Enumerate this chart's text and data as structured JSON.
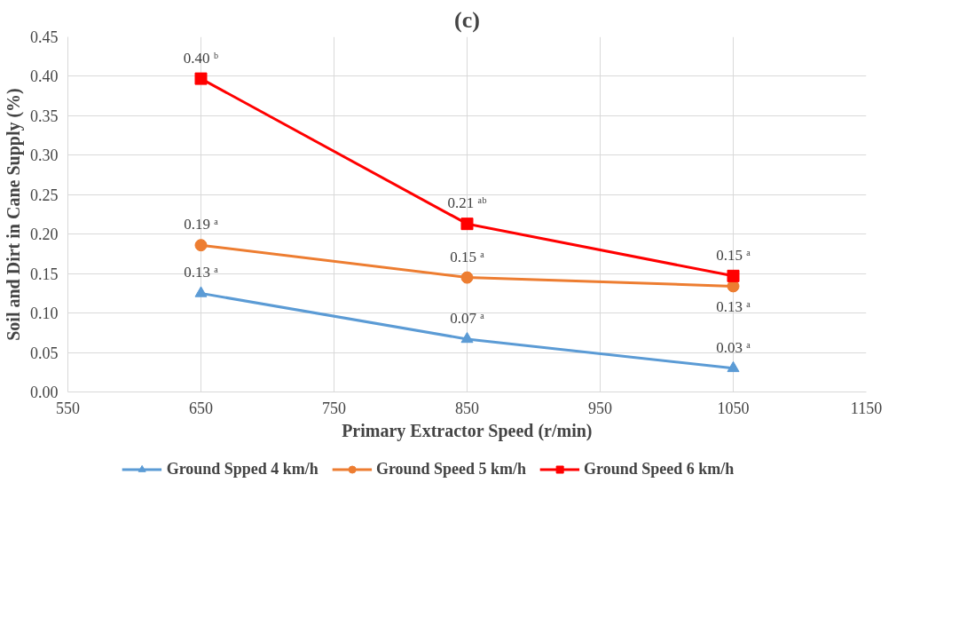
{
  "chart_data": {
    "type": "line",
    "title": "(c)",
    "xlabel": "Primary Extractor Speed (r/min)",
    "ylabel": "Soil and Dirt in Cane Supply (%)",
    "x": [
      650,
      850,
      1050
    ],
    "series": [
      {
        "name": "Ground Spped 4 km/h",
        "color": "#5b9bd5",
        "marker": "triangle",
        "values": [
          0.125,
          0.067,
          0.03
        ],
        "value_labels": [
          "0.13 ᵃ",
          "0.07 ᵃ",
          "0.03 ᵃ"
        ]
      },
      {
        "name": "Ground Speed 5 km/h",
        "color": "#ed7d31",
        "marker": "circle",
        "values": [
          0.186,
          0.145,
          0.134
        ],
        "value_labels": [
          "0.19 ᵃ",
          "0.15 ᵃ",
          "0.13 ᵃ"
        ]
      },
      {
        "name": "Ground Speed 6 km/h",
        "color": "#ff0000",
        "marker": "square",
        "values": [
          0.397,
          0.213,
          0.147
        ],
        "value_labels": [
          "0.40 ᵇ",
          "0.21 ᵃᵇ",
          "0.15 ᵃ"
        ]
      }
    ],
    "xlim": [
      550,
      1150
    ],
    "xticks": [
      550,
      650,
      750,
      850,
      950,
      1050,
      1150
    ],
    "ylim": [
      0,
      0.45
    ],
    "yticks": [
      {
        "value": 0,
        "label": "0.00"
      },
      {
        "value": 0.05,
        "label": "0.05"
      },
      {
        "value": 0.1,
        "label": "0.10"
      },
      {
        "value": 0.15,
        "label": "0.15"
      },
      {
        "value": 0.2,
        "label": "0.20"
      },
      {
        "value": 0.25,
        "label": "0.25"
      },
      {
        "value": 0.3,
        "label": "0.30"
      },
      {
        "value": 0.35,
        "label": "0.35"
      },
      {
        "value": 0.4,
        "label": "0.40"
      },
      {
        "value": 0.45,
        "label": "0.45"
      }
    ],
    "grid": true,
    "legend": "bottom",
    "line_style": "solid"
  }
}
